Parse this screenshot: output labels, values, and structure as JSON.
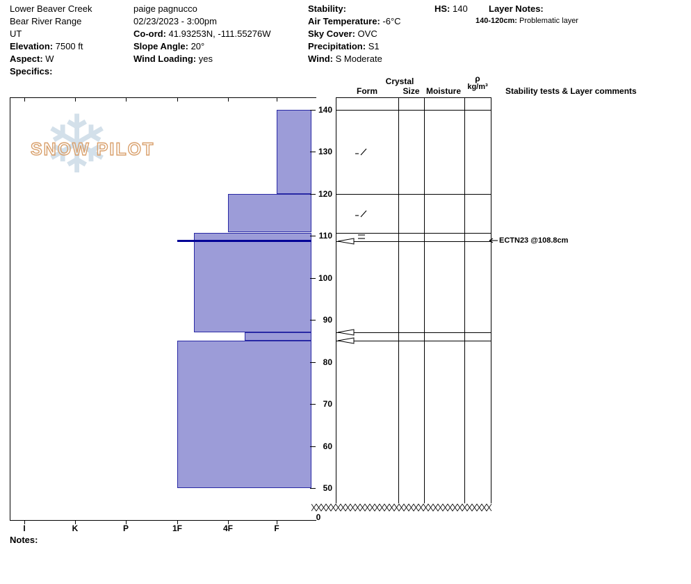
{
  "header": {
    "site": {
      "name": "Lower Beaver Creek",
      "range": "Bear River Range",
      "state": "UT",
      "elevation_label": "Elevation:",
      "elevation_value": " 7500 ft",
      "aspect_label": "Aspect:",
      "aspect_value": " W",
      "specifics_label": "Specifics:"
    },
    "observer": {
      "name": "paige pagnucco",
      "datetime": "02/23/2023 - 3:00pm",
      "coord_label": "Co-ord:",
      "coord_value": " 41.93253N, -111.55276W",
      "slope_label": "Slope Angle:",
      "slope_value": " 20°",
      "wind_loading_label": "Wind Loading:",
      "wind_loading_value": " yes"
    },
    "conditions": {
      "stability_label": "Stability:",
      "stability_value": "",
      "air_temp_label": "Air Temperature:",
      "air_temp_value": " -6°C",
      "sky_label": "Sky Cover:",
      "sky_value": " OVC",
      "precip_label": "Precipitation:",
      "precip_value": " S1",
      "wind_label": "Wind:",
      "wind_value": " S Moderate"
    },
    "hs_label": "HS:",
    "hs_value": " 140",
    "layer_notes": {
      "title": "Layer Notes:",
      "note_range": "140-120cm:",
      "note_text": " Problematic layer"
    }
  },
  "watermark": {
    "text": "SNOW PILOT",
    "snowflake": "❄"
  },
  "table": {
    "crystal_header": "Crystal",
    "form_header": "Form",
    "size_header": "Size",
    "moisture_header": "Moisture",
    "density_header_symbol": "ρ",
    "density_header_units": "kg/m³",
    "comments_header": "Stability tests & Layer comments"
  },
  "notes_label": "Notes:",
  "chart_data": {
    "type": "snow-profile",
    "title": "Snow pit hardness profile",
    "hs_cm": 140,
    "depth_axis_ticks": [
      140,
      130,
      120,
      110,
      100,
      90,
      80,
      70,
      60,
      50
    ],
    "ground_break_label": "0",
    "hardness_ticks": [
      "I",
      "K",
      "P",
      "1F",
      "4F",
      "F"
    ],
    "layers": [
      {
        "top_cm": 140,
        "bottom_cm": 120,
        "hardness": "F",
        "grain_symbol": "dash-slash"
      },
      {
        "top_cm": 120,
        "bottom_cm": 110.8,
        "hardness": "4F",
        "grain_symbol": "dash-slash"
      },
      {
        "top_cm": 110.8,
        "bottom_cm": 108.8,
        "hardness": "1F-",
        "grain_symbol": "double-bar"
      },
      {
        "top_cm": 108.8,
        "bottom_cm": 87,
        "hardness": "1F-",
        "grain_symbol": ""
      },
      {
        "top_cm": 87,
        "bottom_cm": 85,
        "hardness": "4F-",
        "grain_symbol": ""
      },
      {
        "top_cm": 85,
        "bottom_cm": 50,
        "hardness": "1F",
        "grain_symbol": ""
      }
    ],
    "weak_layer": {
      "depth_cm": 108.8,
      "hardness": "1F"
    },
    "boundary_marker_depths_cm": [
      108.8,
      87,
      85
    ],
    "stability_tests": [
      {
        "label": "ECTN23 @108.8cm",
        "depth_cm": 108.8
      }
    ],
    "colors": {
      "bar_fill": "#9c9cd8",
      "bar_border": "#2828a4",
      "weak_layer_line": "#000096"
    }
  }
}
